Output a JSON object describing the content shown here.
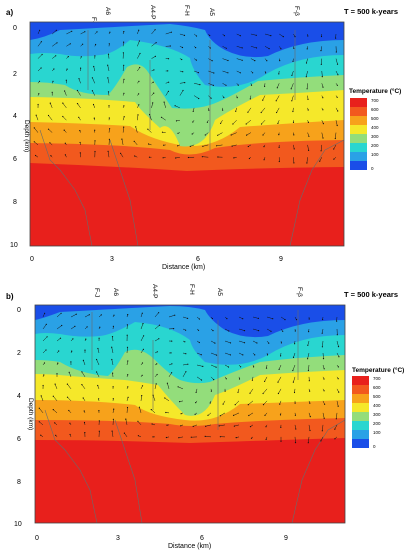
{
  "panels": [
    {
      "label": "a)",
      "title": "T = 500 k-years",
      "y_axis_label": "Depth (km)",
      "x_axis_label": "Distance (km)",
      "y_ticks": [
        "0",
        "2",
        "4",
        "6",
        "8",
        "10"
      ],
      "x_ticks": [
        "0",
        "3",
        "6",
        "9"
      ],
      "well_labels": [
        "F-J",
        "A6",
        "A4-P",
        "F-H",
        "A5",
        "F-β"
      ],
      "legend": {
        "title": "Temperature (°C)",
        "values": [
          "700",
          "600",
          "500",
          "400",
          "300",
          "200",
          "100",
          "0"
        ]
      }
    },
    {
      "label": "b)",
      "title": "T = 500 k-years",
      "y_axis_label": "Depth (km)",
      "x_axis_label": "Distance (km)",
      "y_ticks": [
        "0",
        "2",
        "4",
        "6",
        "8",
        "10"
      ],
      "x_ticks": [
        "0",
        "3",
        "6",
        "9"
      ],
      "well_labels": [
        "F-J",
        "A6",
        "A4-P",
        "F-H",
        "A5",
        "F-β"
      ],
      "legend": {
        "title": "Temperature (°C)",
        "values": [
          "700",
          "600",
          "500",
          "400",
          "300",
          "200",
          "100",
          "0"
        ]
      }
    }
  ],
  "colors": {
    "t700": "#e8201c",
    "t600": "#f2591e",
    "t500": "#f7a21b",
    "t400": "#f5e82a",
    "t300": "#93dd7b",
    "t200": "#29d6d0",
    "t100": "#2aa1e6",
    "t0": "#1a4ee8",
    "title_red": "#e02020"
  }
}
